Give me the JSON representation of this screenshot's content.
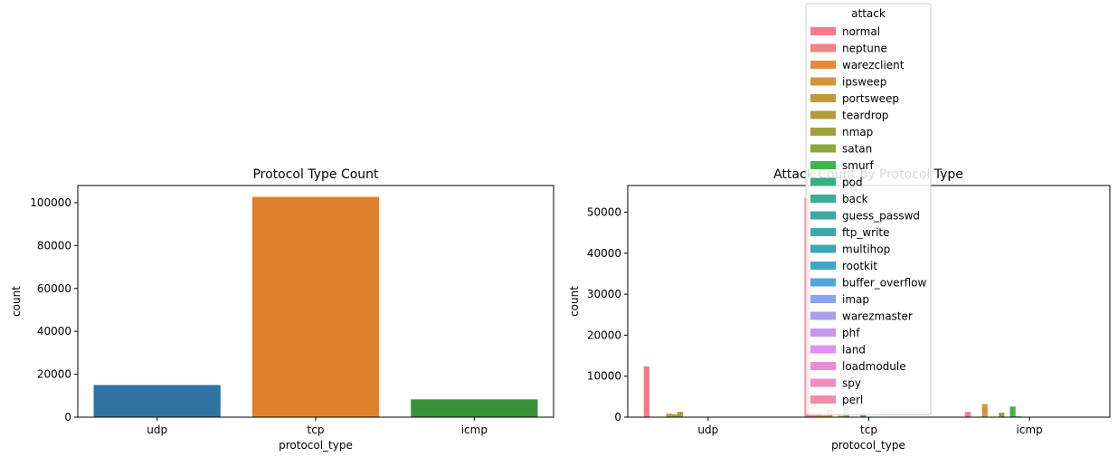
{
  "chart_data": [
    {
      "type": "bar",
      "title": "Protocol Type Count",
      "xlabel": "protocol_type",
      "ylabel": "count",
      "categories": [
        "udp",
        "tcp",
        "icmp"
      ],
      "values": [
        15000,
        102700,
        8300
      ],
      "colors": [
        "#3274a1",
        "#e1812c",
        "#3a923a"
      ],
      "ylim": [
        0,
        108000
      ],
      "yticks": [
        0,
        20000,
        40000,
        60000,
        80000,
        100000
      ],
      "grid": false
    },
    {
      "type": "bar",
      "title": "Attack Count by Protocol Type",
      "xlabel": "protocol_type",
      "ylabel": "count",
      "categories": [
        "udp",
        "tcp",
        "icmp"
      ],
      "ylim": [
        0,
        56500
      ],
      "yticks": [
        0,
        10000,
        20000,
        30000,
        40000,
        50000
      ],
      "grid": false,
      "legend": {
        "title": "attack",
        "placement": "top-center"
      },
      "series": [
        {
          "name": "normal",
          "color": "#f8798c",
          "values": [
            12400,
            53500,
            1300
          ]
        },
        {
          "name": "neptune",
          "color": "#f08682",
          "values": [
            0,
            1200,
            0
          ]
        },
        {
          "name": "warezclient",
          "color": "#e58a3b",
          "values": [
            0,
            900,
            0
          ]
        },
        {
          "name": "ipsweep",
          "color": "#d5943a",
          "values": [
            0,
            400,
            3200
          ]
        },
        {
          "name": "portsweep",
          "color": "#c29a3d",
          "values": [
            900,
            1800,
            0
          ]
        },
        {
          "name": "teardrop",
          "color": "#b29c3a",
          "values": [
            700,
            0,
            0
          ]
        },
        {
          "name": "nmap",
          "color": "#a1a13c",
          "values": [
            1300,
            300,
            1100
          ]
        },
        {
          "name": "satan",
          "color": "#89a93c",
          "values": [
            0,
            2500,
            0
          ]
        },
        {
          "name": "smurf",
          "color": "#3fb54a",
          "values": [
            0,
            0,
            2600
          ]
        },
        {
          "name": "pod",
          "color": "#3bb07f",
          "values": [
            0,
            0,
            200
          ]
        },
        {
          "name": "back",
          "color": "#3aae96",
          "values": [
            0,
            900,
            0
          ]
        },
        {
          "name": "guess_passwd",
          "color": "#3aab9f",
          "values": [
            0,
            50,
            0
          ]
        },
        {
          "name": "ftp_write",
          "color": "#3ba9aa",
          "values": [
            0,
            10,
            0
          ]
        },
        {
          "name": "multihop",
          "color": "#3ca6b6",
          "values": [
            0,
            10,
            0
          ]
        },
        {
          "name": "rootkit",
          "color": "#3ea6c8",
          "values": [
            0,
            10,
            0
          ]
        },
        {
          "name": "buffer_overflow",
          "color": "#4da6e3",
          "values": [
            0,
            30,
            0
          ]
        },
        {
          "name": "imap",
          "color": "#8ea2ef",
          "values": [
            0,
            10,
            0
          ]
        },
        {
          "name": "warezmaster",
          "color": "#ab9eef",
          "values": [
            0,
            20,
            0
          ]
        },
        {
          "name": "phf",
          "color": "#c796f0",
          "values": [
            0,
            5,
            0
          ]
        },
        {
          "name": "land",
          "color": "#e48ef0",
          "values": [
            0,
            20,
            0
          ]
        },
        {
          "name": "loadmodule",
          "color": "#ef8ad8",
          "values": [
            0,
            10,
            0
          ]
        },
        {
          "name": "spy",
          "color": "#f38dc0",
          "values": [
            0,
            2,
            0
          ]
        },
        {
          "name": "perl",
          "color": "#f58aa8",
          "values": [
            0,
            3,
            0
          ]
        }
      ]
    }
  ]
}
